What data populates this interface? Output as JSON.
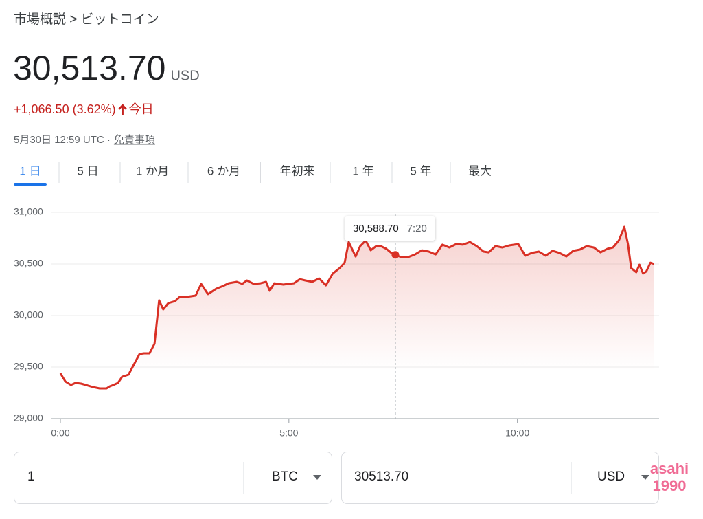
{
  "breadcrumb": "市場概説 > ビットコイン",
  "price": "30,513.70",
  "currency": "USD",
  "change": "+1,066.50 (3.62%)",
  "period": "今日",
  "timestamp": "5月30日 12:59 UTC ·",
  "disclaimer": "免責事項",
  "tabs": [
    "1 日",
    "5 日",
    "1 か月",
    "6 か月",
    "年初来",
    "1 年",
    "5 年",
    "最大"
  ],
  "selected_tab": 0,
  "chart_data": {
    "type": "line",
    "color": "#d93025",
    "x": [
      0,
      0.11,
      0.23,
      0.33,
      0.45,
      0.56,
      0.71,
      0.86,
      1.01,
      1.08,
      1.16,
      1.26,
      1.35,
      1.49,
      1.61,
      1.73,
      1.83,
      1.95,
      2.06,
      2.16,
      2.25,
      2.36,
      2.51,
      2.61,
      2.76,
      2.96,
      3.08,
      3.23,
      3.41,
      3.56,
      3.68,
      3.86,
      3.98,
      4.08,
      4.23,
      4.38,
      4.5,
      4.58,
      4.68,
      4.88,
      4.98,
      5.11,
      5.24,
      5.36,
      5.51,
      5.66,
      5.81,
      5.96,
      6.11,
      6.22,
      6.31,
      6.46,
      6.56,
      6.68,
      6.79,
      6.91,
      7.01,
      7.13,
      7.24,
      7.33,
      7.46,
      7.61,
      7.76,
      7.91,
      8.06,
      8.21,
      8.36,
      8.51,
      8.66,
      8.81,
      8.96,
      9.11,
      9.26,
      9.37,
      9.52,
      9.67,
      9.82,
      10.02,
      10.17,
      10.32,
      10.47,
      10.62,
      10.77,
      10.92,
      11.07,
      11.22,
      11.37,
      11.52,
      11.67,
      11.82,
      11.97,
      12.09,
      12.22,
      12.34,
      12.42,
      12.49,
      12.6,
      12.67,
      12.75,
      12.82,
      12.91,
      12.99
    ],
    "values": [
      29440,
      29360,
      29327,
      29347,
      29340,
      29327,
      29307,
      29293,
      29293,
      29313,
      29327,
      29347,
      29407,
      29427,
      29527,
      29627,
      29633,
      29633,
      29727,
      30147,
      30060,
      30120,
      30140,
      30180,
      30180,
      30193,
      30307,
      30207,
      30260,
      30287,
      30313,
      30327,
      30307,
      30340,
      30307,
      30313,
      30327,
      30240,
      30313,
      30300,
      30307,
      30313,
      30353,
      30340,
      30327,
      30360,
      30293,
      30407,
      30460,
      30513,
      30713,
      30573,
      30673,
      30727,
      30633,
      30673,
      30673,
      30647,
      30607,
      30587,
      30567,
      30567,
      30593,
      30633,
      30620,
      30593,
      30687,
      30660,
      30693,
      30687,
      30713,
      30673,
      30620,
      30613,
      30673,
      30660,
      30680,
      30693,
      30580,
      30607,
      30620,
      30580,
      30627,
      30607,
      30573,
      30627,
      30640,
      30673,
      30660,
      30613,
      30647,
      30660,
      30727,
      30860,
      30693,
      30460,
      30420,
      30493,
      30407,
      30427,
      30513,
      30500
    ],
    "xlim": [
      0,
      13.1
    ],
    "ylim": [
      29000,
      31000
    ],
    "xticks": [
      {
        "value": 0,
        "label": "0:00"
      },
      {
        "value": 5,
        "label": "5:00"
      },
      {
        "value": 10,
        "label": "10:00"
      }
    ],
    "yticks": [
      {
        "value": 29000,
        "label": "29,000"
      },
      {
        "value": 29500,
        "label": "29,500"
      },
      {
        "value": 30000,
        "label": "30,000"
      },
      {
        "value": 30500,
        "label": "30,500"
      },
      {
        "value": 31000,
        "label": "31,000"
      }
    ],
    "grid": true,
    "tooltip": {
      "x": 7.33,
      "value": 30588.7,
      "value_label": "30,588.70",
      "time_label": "7:20"
    }
  },
  "converter": {
    "from_amount": "1",
    "from_currency": "BTC",
    "to_amount": "30513.70",
    "to_currency": "USD"
  },
  "watermark": [
    "asahi",
    "1990"
  ]
}
